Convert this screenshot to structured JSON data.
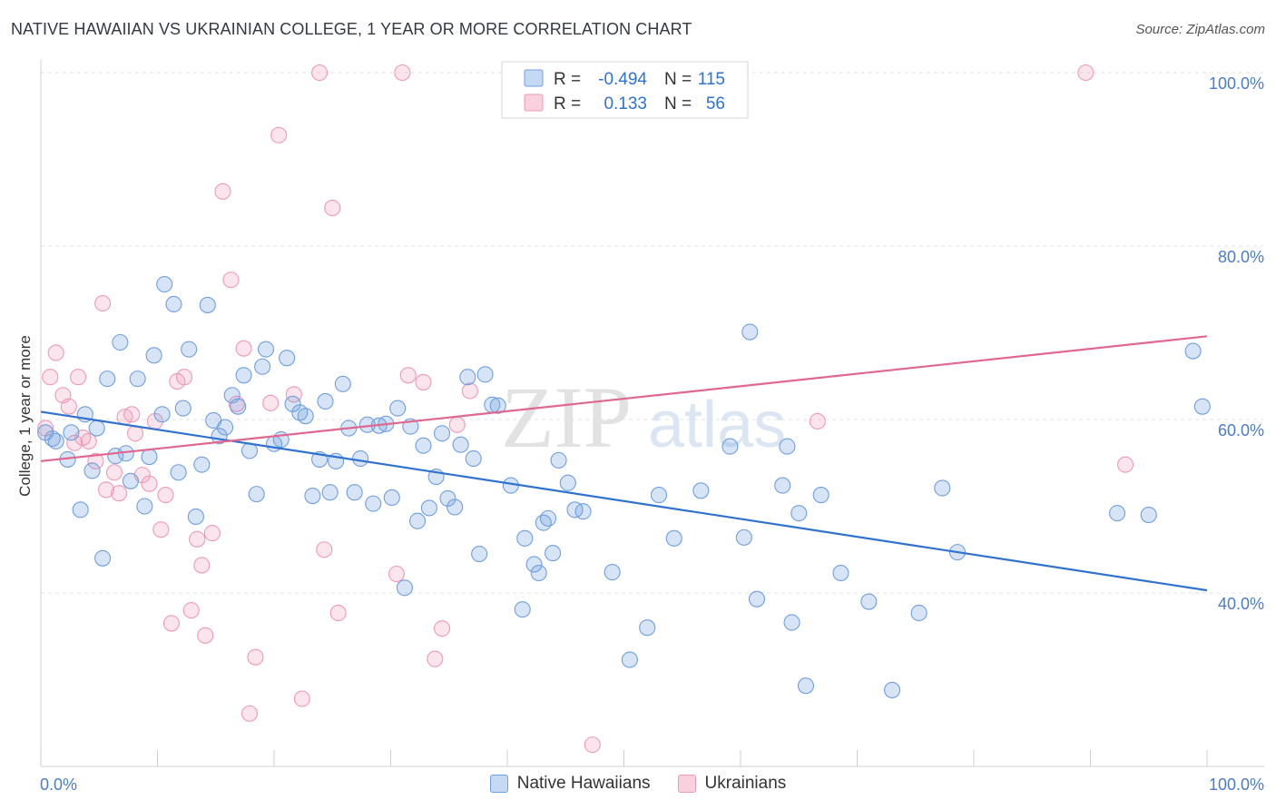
{
  "header": {
    "title": "NATIVE HAWAIIAN VS UKRAINIAN COLLEGE, 1 YEAR OR MORE CORRELATION CHART",
    "source": "Source: ZipAtlas.com"
  },
  "watermark": {
    "zip": "ZIP",
    "atlas": "atlas"
  },
  "colors": {
    "blue": "#6f9fe0",
    "blue_line": "#2f72d0",
    "pink": "#f099b5",
    "pink_line": "#e06890",
    "axis_label": "#4a7ccc"
  },
  "legend": {
    "r_label": "R =",
    "n_label": "N =",
    "rows": [
      {
        "series": "Native Hawaiians",
        "r": "-0.494",
        "n": "115"
      },
      {
        "series": "Ukrainians",
        "r": "0.133",
        "n": "56"
      }
    ]
  },
  "chart_data": {
    "type": "scatter",
    "title": "NATIVE HAWAIIAN VS UKRAINIAN COLLEGE, 1 YEAR OR MORE CORRELATION CHART",
    "xlabel": "",
    "ylabel": "College, 1 year or more",
    "xlim": [
      0,
      100
    ],
    "ylim": [
      20,
      100
    ],
    "x_tick_labels": [
      "0.0%",
      "100.0%"
    ],
    "y_ticks": [
      40,
      60,
      80,
      100
    ],
    "y_tick_labels": [
      "40.0%",
      "60.0%",
      "80.0%",
      "100.0%"
    ],
    "grid": true,
    "legend_position": "top-center",
    "series": [
      {
        "name": "Native Hawaiians",
        "color": "#6f9fe0",
        "trend": {
          "x": [
            0,
            100
          ],
          "y": [
            60.9,
            40.3
          ]
        },
        "points": [
          [
            0.4,
            58.5
          ],
          [
            1.0,
            57.8
          ],
          [
            1.3,
            57.5
          ],
          [
            2.3,
            55.4
          ],
          [
            2.6,
            58.5
          ],
          [
            3.4,
            49.6
          ],
          [
            3.8,
            60.6
          ],
          [
            4.4,
            54.1
          ],
          [
            4.8,
            59.0
          ],
          [
            5.3,
            44.0
          ],
          [
            5.7,
            64.7
          ],
          [
            6.4,
            55.8
          ],
          [
            6.8,
            68.9
          ],
          [
            7.3,
            56.1
          ],
          [
            7.7,
            52.9
          ],
          [
            8.3,
            64.7
          ],
          [
            8.9,
            50.0
          ],
          [
            9.3,
            55.7
          ],
          [
            9.7,
            67.4
          ],
          [
            10.4,
            60.6
          ],
          [
            10.6,
            75.6
          ],
          [
            11.4,
            73.3
          ],
          [
            11.8,
            53.9
          ],
          [
            12.2,
            61.3
          ],
          [
            12.7,
            68.1
          ],
          [
            13.3,
            48.8
          ],
          [
            13.8,
            54.8
          ],
          [
            14.3,
            73.2
          ],
          [
            14.8,
            59.9
          ],
          [
            15.3,
            58.1
          ],
          [
            15.8,
            59.1
          ],
          [
            16.4,
            62.8
          ],
          [
            16.9,
            61.5
          ],
          [
            17.4,
            65.1
          ],
          [
            17.9,
            56.4
          ],
          [
            18.5,
            51.4
          ],
          [
            19.0,
            66.1
          ],
          [
            19.3,
            68.1
          ],
          [
            20.0,
            57.2
          ],
          [
            20.6,
            57.7
          ],
          [
            21.1,
            67.1
          ],
          [
            21.6,
            61.8
          ],
          [
            22.2,
            60.8
          ],
          [
            22.7,
            60.4
          ],
          [
            23.3,
            51.2
          ],
          [
            23.9,
            55.4
          ],
          [
            24.4,
            62.1
          ],
          [
            24.8,
            51.6
          ],
          [
            25.3,
            55.2
          ],
          [
            25.9,
            64.1
          ],
          [
            26.4,
            59.0
          ],
          [
            26.9,
            51.6
          ],
          [
            27.4,
            55.5
          ],
          [
            28.0,
            59.4
          ],
          [
            28.5,
            50.3
          ],
          [
            29.0,
            59.3
          ],
          [
            29.6,
            59.5
          ],
          [
            30.1,
            51.0
          ],
          [
            30.6,
            61.3
          ],
          [
            31.2,
            40.6
          ],
          [
            31.7,
            59.2
          ],
          [
            32.3,
            48.3
          ],
          [
            32.8,
            57.0
          ],
          [
            33.3,
            49.8
          ],
          [
            33.9,
            53.4
          ],
          [
            34.4,
            58.4
          ],
          [
            34.9,
            50.9
          ],
          [
            35.5,
            49.9
          ],
          [
            36.0,
            57.1
          ],
          [
            36.6,
            64.9
          ],
          [
            37.1,
            55.5
          ],
          [
            37.6,
            44.5
          ],
          [
            38.1,
            65.2
          ],
          [
            38.7,
            61.7
          ],
          [
            39.2,
            61.6
          ],
          [
            40.3,
            52.4
          ],
          [
            41.3,
            38.1
          ],
          [
            41.5,
            46.3
          ],
          [
            42.3,
            43.3
          ],
          [
            42.7,
            42.3
          ],
          [
            43.5,
            48.6
          ],
          [
            43.9,
            44.6
          ],
          [
            43.1,
            48.1
          ],
          [
            44.4,
            55.3
          ],
          [
            45.2,
            52.7
          ],
          [
            45.8,
            49.6
          ],
          [
            46.5,
            49.4
          ],
          [
            49.0,
            42.4
          ],
          [
            50.5,
            32.3
          ],
          [
            52.0,
            36.0
          ],
          [
            53.0,
            51.3
          ],
          [
            54.3,
            46.3
          ],
          [
            56.6,
            51.8
          ],
          [
            59.1,
            56.9
          ],
          [
            60.3,
            46.4
          ],
          [
            60.8,
            70.1
          ],
          [
            61.4,
            39.3
          ],
          [
            63.6,
            52.4
          ],
          [
            64.0,
            56.9
          ],
          [
            64.4,
            36.6
          ],
          [
            65.0,
            49.2
          ],
          [
            65.6,
            29.3
          ],
          [
            66.9,
            51.3
          ],
          [
            68.6,
            42.3
          ],
          [
            71.0,
            39.0
          ],
          [
            73.0,
            28.8
          ],
          [
            75.3,
            37.7
          ],
          [
            77.3,
            52.1
          ],
          [
            78.6,
            44.7
          ],
          [
            92.3,
            49.2
          ],
          [
            98.8,
            67.9
          ],
          [
            99.6,
            61.5
          ],
          [
            95.0,
            49.0
          ]
        ]
      },
      {
        "name": "Ukrainians",
        "color": "#f099b5",
        "trend": {
          "x": [
            0,
            100
          ],
          "y": [
            55.2,
            69.6
          ]
        },
        "points": [
          [
            0.4,
            59.0
          ],
          [
            0.8,
            64.9
          ],
          [
            1.3,
            67.7
          ],
          [
            1.9,
            62.8
          ],
          [
            2.4,
            61.5
          ],
          [
            2.9,
            57.3
          ],
          [
            3.2,
            64.9
          ],
          [
            3.6,
            57.9
          ],
          [
            4.1,
            57.5
          ],
          [
            4.7,
            55.2
          ],
          [
            5.3,
            73.4
          ],
          [
            5.6,
            51.9
          ],
          [
            6.3,
            53.9
          ],
          [
            6.7,
            51.5
          ],
          [
            7.2,
            60.3
          ],
          [
            7.8,
            60.6
          ],
          [
            8.1,
            58.4
          ],
          [
            8.7,
            53.6
          ],
          [
            9.3,
            52.6
          ],
          [
            9.8,
            59.8
          ],
          [
            10.3,
            47.3
          ],
          [
            10.7,
            51.3
          ],
          [
            11.2,
            36.5
          ],
          [
            11.7,
            64.4
          ],
          [
            12.3,
            64.9
          ],
          [
            12.9,
            38.0
          ],
          [
            13.4,
            46.2
          ],
          [
            13.8,
            43.2
          ],
          [
            14.1,
            35.1
          ],
          [
            14.7,
            46.9
          ],
          [
            15.6,
            86.3
          ],
          [
            16.3,
            76.1
          ],
          [
            16.8,
            61.8
          ],
          [
            17.4,
            68.2
          ],
          [
            17.9,
            26.1
          ],
          [
            18.4,
            32.6
          ],
          [
            19.7,
            61.9
          ],
          [
            20.4,
            92.8
          ],
          [
            21.7,
            62.9
          ],
          [
            22.4,
            27.8
          ],
          [
            23.9,
            100.0
          ],
          [
            24.3,
            45.0
          ],
          [
            25.5,
            37.7
          ],
          [
            25.0,
            84.4
          ],
          [
            30.5,
            42.2
          ],
          [
            31.0,
            100.0
          ],
          [
            31.5,
            65.1
          ],
          [
            32.8,
            64.3
          ],
          [
            33.8,
            32.4
          ],
          [
            34.4,
            35.9
          ],
          [
            35.7,
            59.4
          ],
          [
            36.8,
            63.3
          ],
          [
            47.3,
            22.5
          ],
          [
            66.6,
            59.8
          ],
          [
            89.6,
            100.0
          ],
          [
            93.0,
            54.8
          ]
        ]
      }
    ]
  },
  "bottom_legend": [
    "Native Hawaiians",
    "Ukrainians"
  ]
}
